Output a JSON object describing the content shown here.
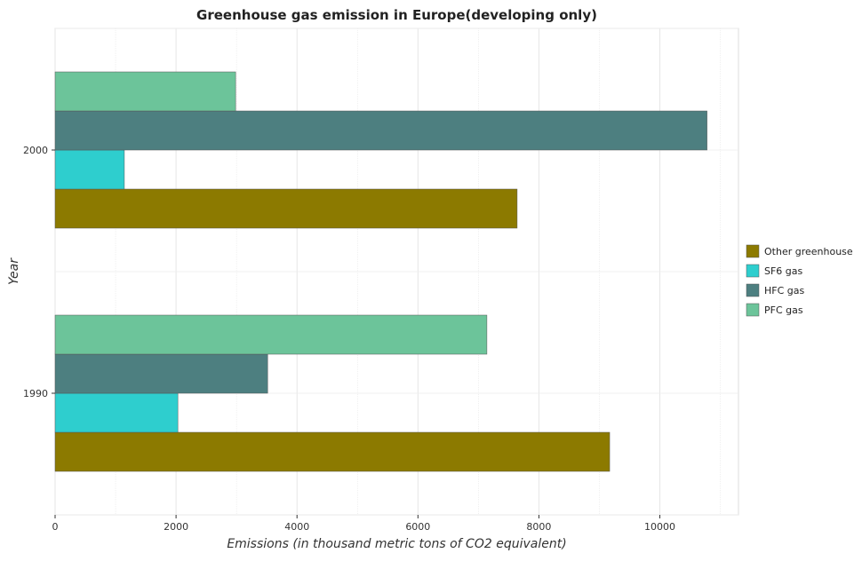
{
  "chart_data": {
    "type": "bar",
    "orientation": "horizontal",
    "title": "Greenhouse gas emission in Europe(developing only)",
    "xlabel": "Emissions (in thousand metric tons of CO2 equivalent)",
    "ylabel": "Year",
    "categories": [
      "1990",
      "2000"
    ],
    "xlim": [
      0,
      11300
    ],
    "xticks": [
      0,
      2000,
      4000,
      6000,
      8000,
      10000
    ],
    "xtick_labels": [
      "0",
      "2000",
      "4000",
      "6000",
      "8000",
      "10000"
    ],
    "grid": true,
    "legend_position": "right",
    "series": [
      {
        "name": "Other greenhouse gases",
        "color": "#8c7a00",
        "values": [
          9170,
          7640
        ]
      },
      {
        "name": "SF6 gas",
        "color": "#2ecece",
        "values": [
          2030,
          1145
        ]
      },
      {
        "name": "HFC gas",
        "color": "#4d7f80",
        "values": [
          3515,
          10780
        ]
      },
      {
        "name": "PFC gas",
        "color": "#6cc49a",
        "values": [
          7140,
          2985
        ]
      }
    ]
  }
}
